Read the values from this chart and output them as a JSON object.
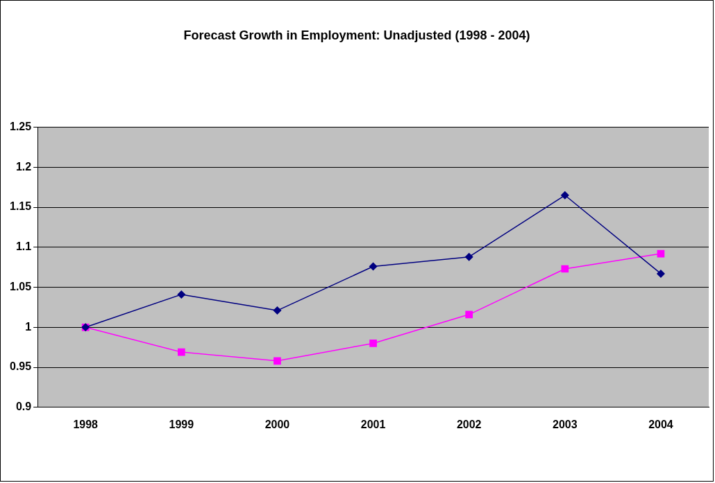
{
  "chart_data": {
    "type": "line",
    "title": "Forecast Growth in Employment: Unadjusted (1998 - 2004)",
    "categories": [
      "1998",
      "1999",
      "2000",
      "2001",
      "2002",
      "2003",
      "2004"
    ],
    "series": [
      {
        "color": "#000080",
        "marker": "diamond",
        "values": [
          1.0,
          1.041,
          1.021,
          1.076,
          1.088,
          1.165,
          1.067
        ]
      },
      {
        "color": "#ff00ff",
        "marker": "square",
        "values": [
          1.0,
          0.969,
          0.958,
          0.98,
          1.016,
          1.073,
          1.092
        ]
      }
    ],
    "ylim": [
      0.9,
      1.25
    ],
    "yticks": [
      0.9,
      0.95,
      1,
      1.05,
      1.1,
      1.15,
      1.2,
      1.25
    ],
    "grid": "y",
    "legend": false
  }
}
